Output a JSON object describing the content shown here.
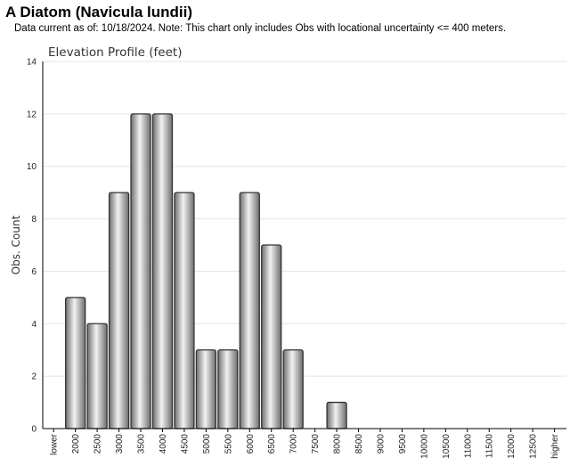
{
  "header": {
    "title": "A Diatom   (Navicula lundii)",
    "subtitle": "Data current as of: 10/18/2024.    Note: This chart only includes Obs with locational uncertainty <= 400 meters."
  },
  "chart_data": {
    "type": "bar",
    "title": "Elevation Profile (feet)",
    "xlabel": "",
    "ylabel": "Obs. Count",
    "ylim": [
      0,
      14
    ],
    "yticks": [
      0,
      2,
      4,
      6,
      8,
      10,
      12,
      14
    ],
    "grid": true,
    "categories": [
      "lower",
      "2000",
      "2500",
      "3000",
      "3500",
      "4000",
      "4500",
      "5000",
      "5500",
      "6000",
      "6500",
      "7000",
      "7500",
      "8000",
      "8500",
      "9000",
      "9500",
      "10000",
      "10500",
      "11000",
      "11500",
      "12000",
      "12500",
      "higher"
    ],
    "values": [
      0,
      5,
      4,
      9,
      12,
      12,
      9,
      3,
      3,
      9,
      7,
      3,
      0,
      1,
      0,
      0,
      0,
      0,
      0,
      0,
      0,
      0,
      0,
      0
    ],
    "colors": {
      "bar_dark": "#6e6e6e",
      "bar_light": "#f2f2f2",
      "bar_stroke": "#333333",
      "grid": "#e4e4e4",
      "axis": "#000000"
    }
  }
}
